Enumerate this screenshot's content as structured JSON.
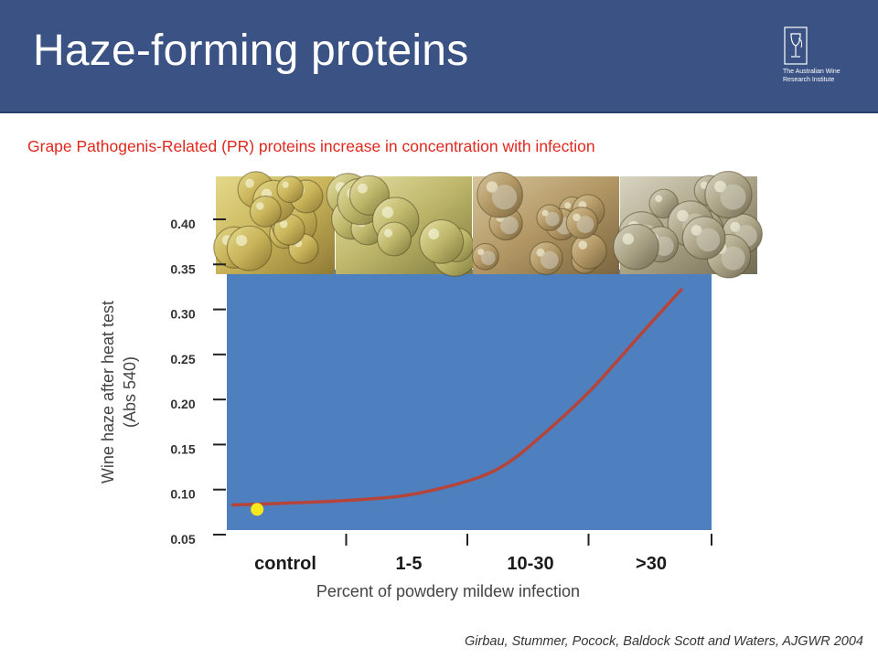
{
  "header": {
    "title": "Haze-forming proteins",
    "logo_text_line1": "The Australian Wine",
    "logo_text_line2": "Research Institute"
  },
  "subtitle": "Grape Pathogenis-Related (PR) proteins increase in concentration with infection",
  "citation": "Girbau, Stummer, Pocock, Baldock Scott and Waters, AJGWR 2004",
  "colors": {
    "header_bg": "#3b5384",
    "plot_bg": "#4e7fbf",
    "curve": "#b5453b",
    "marker": "#f6e81a",
    "subtitle": "#e0281e"
  },
  "images": [
    "grape-cluster-control",
    "grape-cluster-1-5",
    "grape-cluster-10-30",
    "grape-cluster-over-30"
  ],
  "chart_data": {
    "type": "line",
    "title": "",
    "xlabel": "Percent of powdery mildew infection",
    "ylabel_line1": "Wine haze after heat test",
    "ylabel_line2": "(Abs 540)",
    "categories": [
      "control",
      "1-5",
      "10-30",
      ">30"
    ],
    "x_range": [
      0,
      4
    ],
    "ylim": [
      0.05,
      0.4
    ],
    "yticks": [
      0.05,
      0.1,
      0.15,
      0.2,
      0.25,
      0.3,
      0.35,
      0.4
    ],
    "ytick_labels": [
      "0.05",
      "0.10",
      "0.15",
      "0.20",
      "0.25",
      "0.30",
      "0.35",
      "0.40"
    ],
    "grid": false,
    "series": [
      {
        "points": [
          {
            "x": 0.05,
            "y": 0.083
          },
          {
            "x": 0.5,
            "y": 0.085
          },
          {
            "x": 1.0,
            "y": 0.088
          },
          {
            "x": 1.5,
            "y": 0.094
          },
          {
            "x": 2.0,
            "y": 0.11
          },
          {
            "x": 2.3,
            "y": 0.128
          },
          {
            "x": 2.6,
            "y": 0.16
          },
          {
            "x": 3.0,
            "y": 0.21
          },
          {
            "x": 3.4,
            "y": 0.27
          },
          {
            "x": 3.75,
            "y": 0.322
          }
        ]
      }
    ],
    "marker_point": {
      "x": 0.25,
      "y": 0.078
    }
  }
}
